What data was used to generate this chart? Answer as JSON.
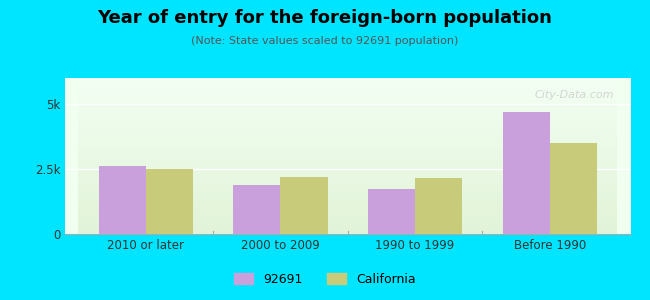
{
  "title": "Year of entry for the foreign-born population",
  "subtitle": "(Note: State values scaled to 92691 population)",
  "categories": [
    "2010 or later",
    "2000 to 2009",
    "1990 to 1999",
    "Before 1990"
  ],
  "values_92691": [
    2600,
    1900,
    1750,
    4700
  ],
  "values_california": [
    2500,
    2200,
    2150,
    3500
  ],
  "color_92691": "#c9a0dc",
  "color_california": "#c8cc7a",
  "background_outer": "#00e5ff",
  "background_inner_top": "#f0fff0",
  "background_inner_bottom": "#e8f5e0",
  "ylim": [
    0,
    6000
  ],
  "yticks": [
    0,
    2500,
    5000
  ],
  "ytick_labels": [
    "0",
    "2.5k",
    "5k"
  ],
  "bar_width": 0.35,
  "legend_labels": [
    "92691",
    "California"
  ],
  "watermark": "City-Data.com"
}
